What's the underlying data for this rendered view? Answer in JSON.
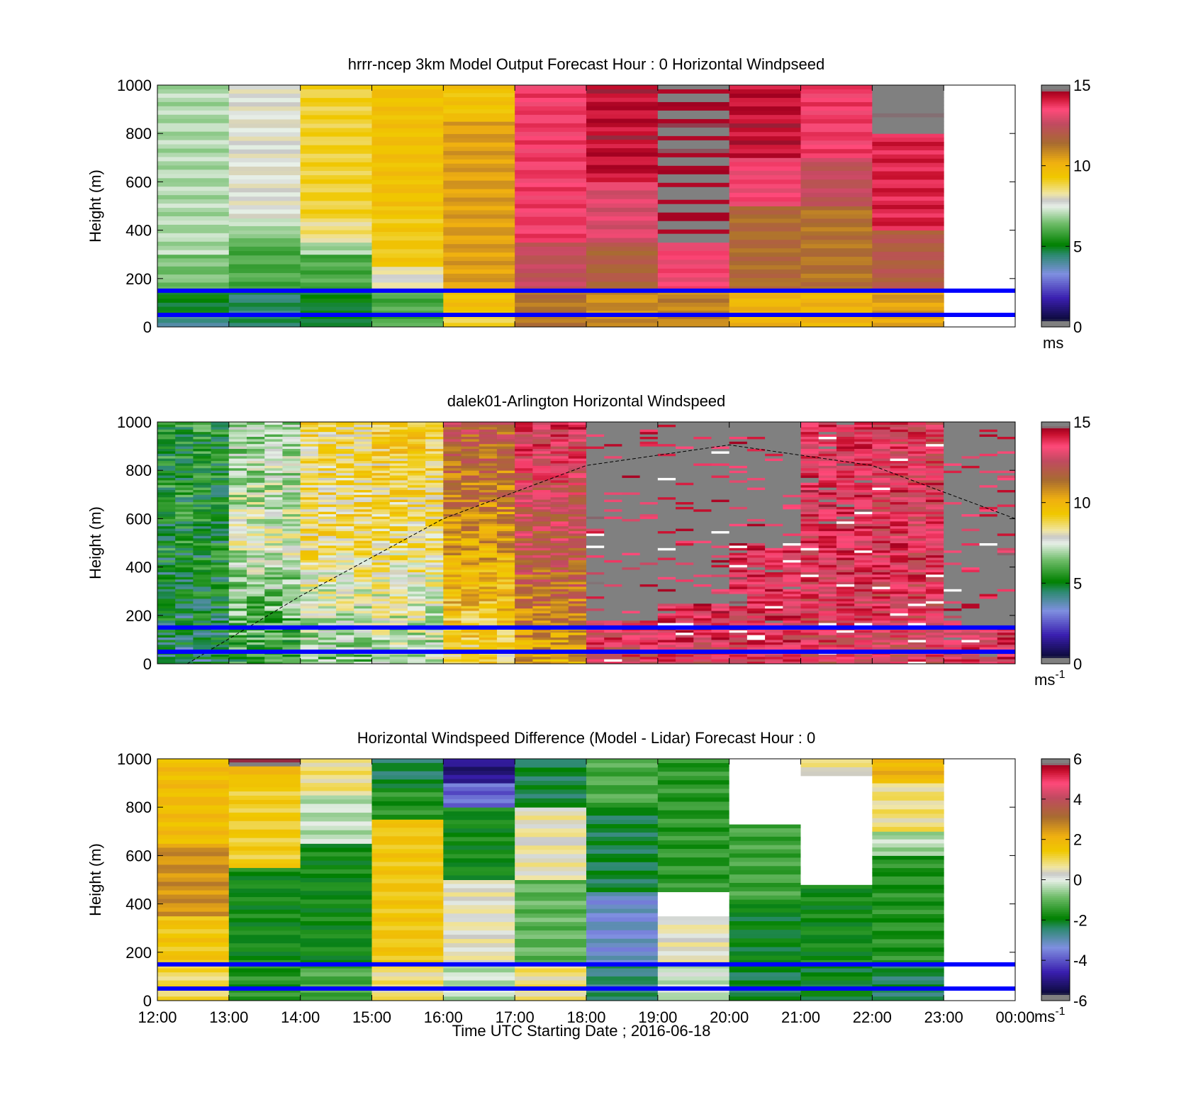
{
  "x_ticks": [
    "12:00",
    "13:00",
    "14:00",
    "15:00",
    "16:00",
    "17:00",
    "18:00",
    "19:00",
    "20:00",
    "21:00",
    "22:00",
    "23:00",
    "00:00"
  ],
  "x_label": "Time UTC  Starting Date ; 2016-06-18",
  "height_lines_m": [
    150,
    50
  ],
  "chart_data": [
    {
      "type": "heatmap",
      "title": "hrrr-ncep 3km Model Output   Forecast Hour : 0 Horizontal Windpseed",
      "ylabel": "Height (m)",
      "ylim": [
        0,
        1000
      ],
      "y_ticks": [
        0,
        200,
        400,
        600,
        800,
        1000
      ],
      "xlim": [
        "12:00",
        "00:00"
      ],
      "colorbar": {
        "min": 0,
        "max": 15,
        "ticks": [
          0,
          5,
          10,
          15
        ],
        "unit": "ms"
      },
      "columns": [
        {
          "hour": "12:00",
          "values": [
            [
              0,
              50,
              4
            ],
            [
              50,
              150,
              5
            ],
            [
              150,
              300,
              6.5
            ],
            [
              300,
              1000,
              7
            ]
          ]
        },
        {
          "hour": "13:00",
          "values": [
            [
              0,
              150,
              4.5
            ],
            [
              150,
              350,
              6
            ],
            [
              350,
              400,
              6.6
            ],
            [
              400,
              450,
              7
            ],
            [
              450,
              1000,
              7.8
            ]
          ]
        },
        {
          "hour": "14:00",
          "values": [
            [
              0,
              150,
              5
            ],
            [
              150,
              300,
              6
            ],
            [
              300,
              350,
              7
            ],
            [
              350,
              450,
              8.5
            ],
            [
              450,
              1000,
              9
            ]
          ]
        },
        {
          "hour": "15:00",
          "values": [
            [
              0,
              150,
              6
            ],
            [
              150,
              250,
              8
            ],
            [
              250,
              500,
              9.3
            ],
            [
              500,
              1000,
              9.6
            ]
          ]
        },
        {
          "hour": "16:00",
          "values": [
            [
              0,
              50,
              9
            ],
            [
              50,
              150,
              9.6
            ],
            [
              150,
              850,
              10.5
            ],
            [
              850,
              1000,
              9.5
            ]
          ]
        },
        {
          "hour": "17:00",
          "values": [
            [
              0,
              150,
              11.3
            ],
            [
              150,
              350,
              12.5
            ],
            [
              350,
              1000,
              13.6
            ]
          ]
        },
        {
          "hour": "18:00",
          "values": [
            [
              0,
              150,
              10.8
            ],
            [
              150,
              350,
              11.8
            ],
            [
              350,
              600,
              13
            ],
            [
              600,
              1000,
              14.3
            ]
          ]
        },
        {
          "hour": "19:00",
          "values": [
            [
              0,
              150,
              11
            ],
            [
              150,
              350,
              13.4
            ],
            [
              350,
              1000,
              14.8
            ]
          ]
        },
        {
          "hour": "20:00",
          "values": [
            [
              0,
              150,
              10
            ],
            [
              150,
              500,
              11.5
            ],
            [
              500,
              700,
              13.4
            ],
            [
              700,
              1000,
              14.3
            ]
          ]
        },
        {
          "hour": "21:00",
          "values": [
            [
              0,
              150,
              10
            ],
            [
              150,
              500,
              11.3
            ],
            [
              500,
              700,
              12.5
            ],
            [
              700,
              1000,
              13.6
            ]
          ]
        },
        {
          "hour": "22:00",
          "values": [
            [
              0,
              150,
              10.5
            ],
            [
              150,
              400,
              12
            ],
            [
              400,
              800,
              14
            ],
            [
              800,
              900,
              15
            ],
            [
              900,
              1000,
              15.8
            ]
          ]
        }
      ]
    },
    {
      "type": "heatmap",
      "title": "dalek01-Arlington  Horizontal Windspeed",
      "ylabel": "Height (m)",
      "ylim": [
        0,
        1000
      ],
      "y_ticks": [
        0,
        200,
        400,
        600,
        800,
        1000
      ],
      "xlim": [
        "12:00",
        "00:00"
      ],
      "colorbar": {
        "min": 0,
        "max": 15,
        "ticks": [
          0,
          5,
          10,
          15
        ],
        "unit": "ms",
        "unit_sup": "-1"
      },
      "hourly_mean": [
        {
          "hour": "12:00",
          "low": 4.5,
          "mid": 5.2,
          "high": 5.5,
          "missing_above": 1000
        },
        {
          "hour": "13:00",
          "low": 5.5,
          "mid": 7.5,
          "high": 6.8,
          "missing_above": 1000
        },
        {
          "hour": "14:00",
          "low": 6.5,
          "mid": 8.6,
          "high": 8.8,
          "missing_above": 1000
        },
        {
          "hour": "15:00",
          "low": 7.0,
          "mid": 8.4,
          "high": 9.3,
          "missing_above": 1000
        },
        {
          "hour": "16:00",
          "low": 8.8,
          "mid": 10.5,
          "high": 12.0,
          "missing_above": 1000
        },
        {
          "hour": "17:00",
          "low": 10.2,
          "mid": 12.3,
          "high": 13.5,
          "missing_above": 1000
        },
        {
          "hour": "18:00",
          "low": 13.0,
          "mid": 14.0,
          "high": 14.5,
          "missing_above": 180
        },
        {
          "hour": "19:00",
          "low": 13.2,
          "mid": 14.2,
          "high": 14.5,
          "missing_above": 250
        },
        {
          "hour": "20:00",
          "low": 13.3,
          "mid": 14.0,
          "high": 14.5,
          "missing_above": 500
        },
        {
          "hour": "21:00",
          "low": 13.0,
          "mid": 13.5,
          "high": 13.8,
          "missing_above": 1000
        },
        {
          "hour": "22:00",
          "low": 13.0,
          "mid": 13.4,
          "high": 13.2,
          "missing_above": 1000
        },
        {
          "hour": "23:00",
          "low": 13.5,
          "mid": 14.0,
          "high": 14.2,
          "missing_above": 150
        }
      ],
      "dashed_curve": [
        {
          "hour": "12:25",
          "height": 0
        },
        {
          "hour": "14:00",
          "height": 280
        },
        {
          "hour": "16:00",
          "height": 600
        },
        {
          "hour": "18:00",
          "height": 820
        },
        {
          "hour": "20:00",
          "height": 905
        },
        {
          "hour": "22:00",
          "height": 820
        },
        {
          "hour": "00:00",
          "height": 600
        }
      ]
    },
    {
      "type": "heatmap",
      "title": "Horizontal Windspeed Difference (Model - Lidar) Forecast Hour : 0",
      "ylabel": "Height (m)",
      "ylim": [
        0,
        1000
      ],
      "y_ticks": [
        0,
        200,
        400,
        600,
        800,
        1000
      ],
      "xlim": [
        "12:00",
        "00:00"
      ],
      "colorbar": {
        "min": -6,
        "max": 6,
        "ticks": [
          -6,
          -4,
          -2,
          0,
          2,
          4,
          6
        ],
        "unit": "ms",
        "unit_sup": "-1"
      },
      "columns": [
        {
          "hour": "12:00",
          "values": [
            [
              0,
              150,
              1
            ],
            [
              150,
              350,
              1.5
            ],
            [
              350,
              650,
              2.6
            ],
            [
              650,
              1000,
              1.8
            ]
          ]
        },
        {
          "hour": "13:00",
          "values": [
            [
              0,
              150,
              -1.6
            ],
            [
              150,
              550,
              -1.8
            ],
            [
              550,
              900,
              1.3
            ],
            [
              900,
              970,
              1.8
            ],
            [
              970,
              1000,
              5.8
            ]
          ]
        },
        {
          "hour": "14:00",
          "values": [
            [
              0,
              150,
              -1.2
            ],
            [
              150,
              650,
              -1.8
            ],
            [
              650,
              850,
              -0.3
            ],
            [
              850,
              1000,
              0.8
            ]
          ]
        },
        {
          "hour": "15:00",
          "values": [
            [
              0,
              150,
              0.8
            ],
            [
              150,
              750,
              1.5
            ],
            [
              750,
              880,
              -1.6
            ],
            [
              880,
              1000,
              -2.3
            ]
          ]
        },
        {
          "hour": "16:00",
          "values": [
            [
              0,
              150,
              -0.3
            ],
            [
              150,
              500,
              0.4
            ],
            [
              500,
              800,
              -1.8
            ],
            [
              800,
              900,
              -3.8
            ],
            [
              900,
              1000,
              -5
            ]
          ]
        },
        {
          "hour": "17:00",
          "values": [
            [
              0,
              150,
              0.8
            ],
            [
              150,
              500,
              -1
            ],
            [
              500,
              800,
              0.5
            ],
            [
              800,
              1000,
              -2.2
            ]
          ]
        },
        {
          "hour": "18:00",
          "values": [
            [
              0,
              150,
              -2.5
            ],
            [
              150,
              450,
              -3.2
            ],
            [
              450,
              800,
              -2.2
            ],
            [
              800,
              1000,
              -1.2
            ]
          ]
        },
        {
          "hour": "19:00",
          "values": [
            [
              0,
              150,
              -0.2
            ],
            [
              150,
              350,
              0.4
            ],
            [
              350,
              450,
              "missing"
            ],
            [
              450,
              1000,
              -1.5
            ]
          ]
        },
        {
          "hour": "20:00",
          "values": [
            [
              0,
              150,
              -2.2
            ],
            [
              150,
              400,
              -2
            ],
            [
              400,
              730,
              -1.3
            ],
            [
              730,
              1000,
              "missing"
            ]
          ]
        },
        {
          "hour": "21:00",
          "values": [
            [
              0,
              150,
              -2
            ],
            [
              150,
              480,
              -1.8
            ],
            [
              480,
              640,
              "missing"
            ],
            [
              640,
              930,
              "missing"
            ],
            [
              930,
              1000,
              0.6
            ]
          ]
        },
        {
          "hour": "22:00",
          "values": [
            [
              0,
              150,
              -2.3
            ],
            [
              150,
              600,
              -1.6
            ],
            [
              600,
              700,
              -0.4
            ],
            [
              700,
              900,
              0.8
            ],
            [
              900,
              1000,
              2
            ]
          ]
        }
      ]
    }
  ]
}
